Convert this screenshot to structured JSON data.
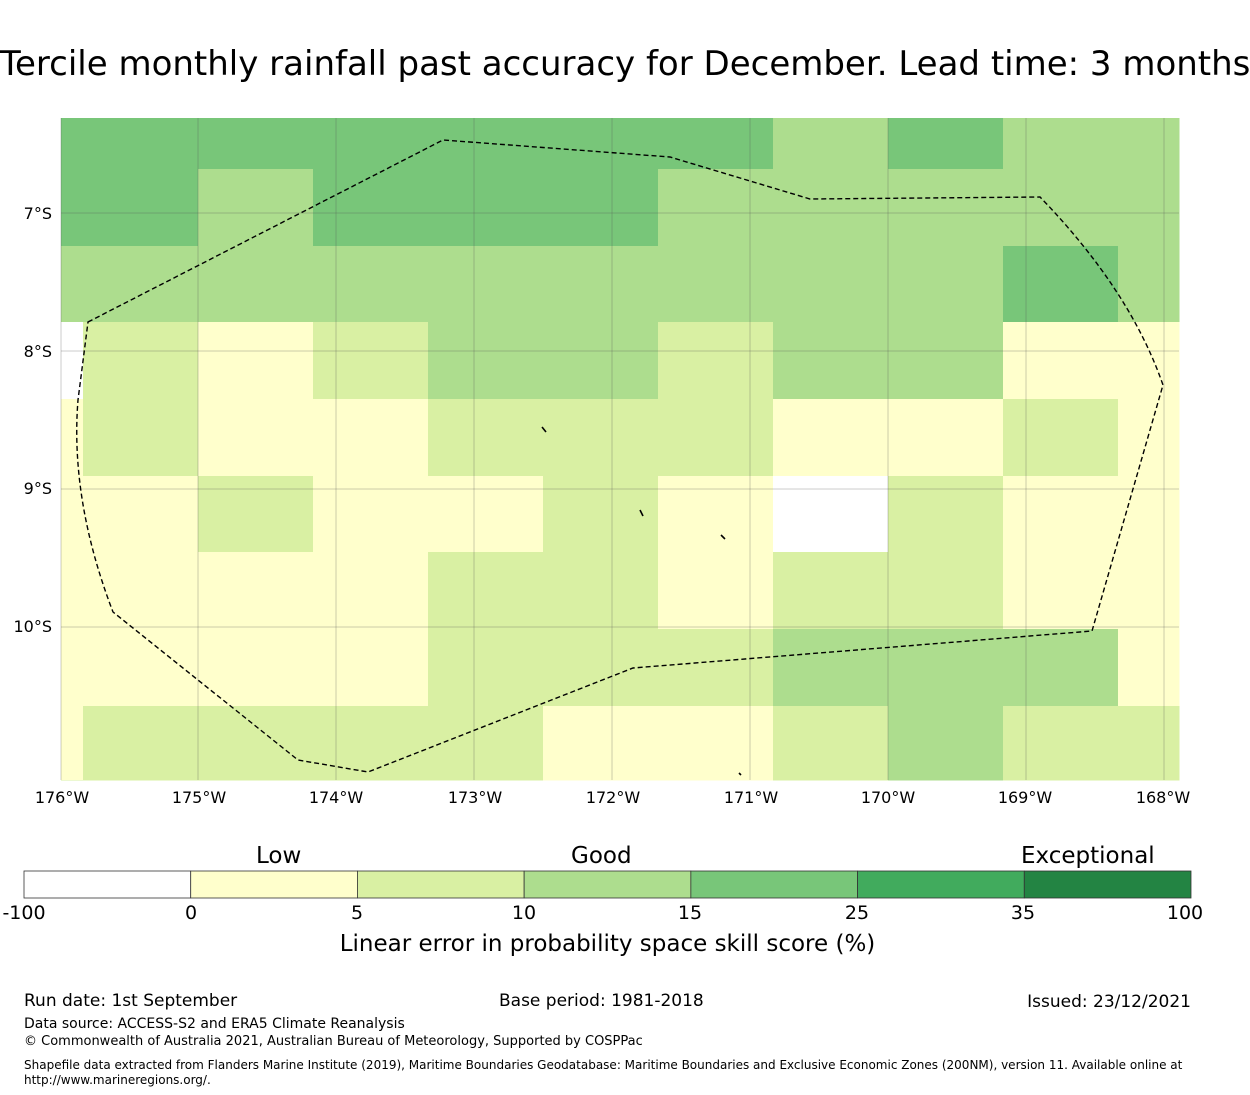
{
  "title": "Tercile monthly rainfall past accuracy for December. Lead time: 3 months",
  "map": {
    "lat_labels": [
      "7°S",
      "8°S",
      "9°S",
      "10°S"
    ],
    "lon_labels": [
      "176°W",
      "175°W",
      "174°W",
      "173°W",
      "172°W",
      "171°W",
      "170°W",
      "169°W",
      "168°W"
    ],
    "colors": {
      "white": "#ffffff",
      "c0_5": "#ffffcc",
      "c5_10": "#d9f0a3",
      "c10_15": "#addd8e",
      "c15_25": "#78c679"
    }
  },
  "colorbar": {
    "categories": [
      "Low",
      "Good",
      "Exceptional"
    ],
    "ticks": [
      "-100",
      "0",
      "5",
      "10",
      "15",
      "25",
      "35",
      "100"
    ],
    "colors": [
      "#ffffff",
      "#ffffcc",
      "#d9f0a3",
      "#addd8e",
      "#78c679",
      "#41ab5d",
      "#238443"
    ],
    "label": "Linear error in probability space skill score (%)"
  },
  "footer": {
    "run_date": "Run date: 1st September",
    "base_period": "Base period: 1981-2018",
    "issued": "Issued: 23/12/2021",
    "data_source": "Data source: ACCESS-S2 and ERA5 Climate Reanalysis",
    "copyright": "© Commonwealth of Australia 2021, Australian Bureau of Meteorology, Supported by COSPPac",
    "shapefile": "Shapefile data extracted from Flanders Marine Institute (2019), Maritime Boundaries Geodatabase: Maritime Boundaries and Exclusive Economic Zones (200NM), version 11. Available online at http://www.marineregions.org/."
  }
}
